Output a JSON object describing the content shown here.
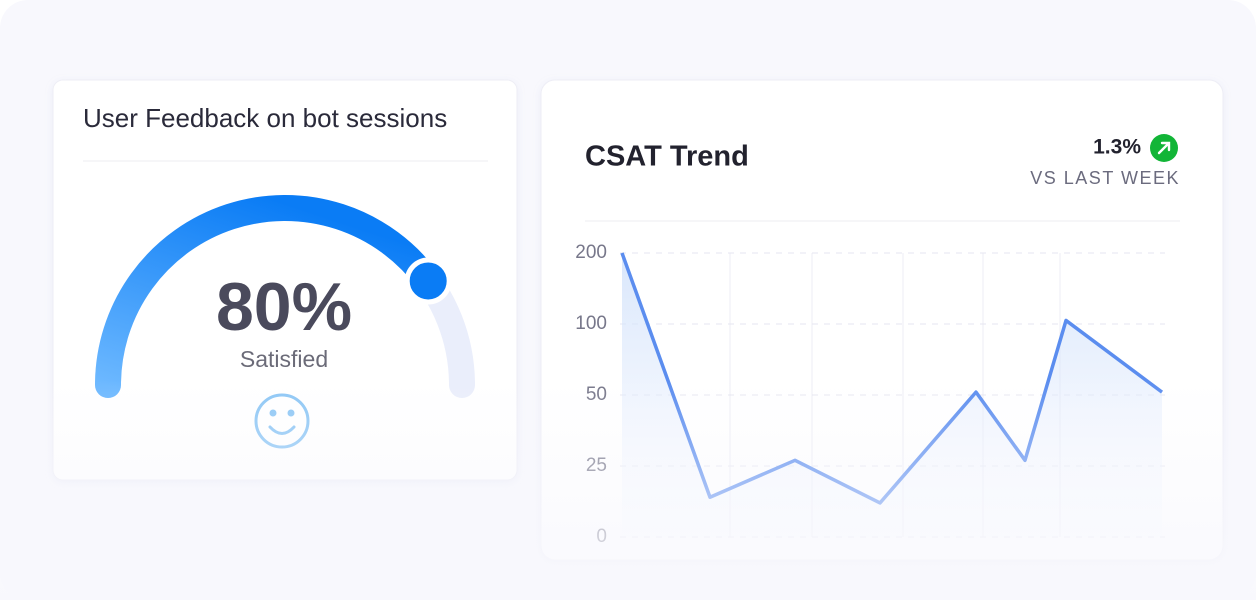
{
  "feedback_card": {
    "title": "User Feedback on bot sessions",
    "gauge": {
      "value": 80,
      "label": "80%"
    },
    "caption": "Satisfied"
  },
  "trend_card": {
    "change": "1.3%",
    "period": "VS LAST WEEK"
  },
  "chart_data": {
    "type": "line",
    "title": "CSAT Trend",
    "series": [
      {
        "name": "CSAT",
        "color": "#5b8def",
        "values": [
          200,
          14,
          27,
          12,
          52,
          27,
          105,
          52
        ]
      }
    ],
    "ylim": [
      0,
      200
    ],
    "yticks": [
      0,
      25,
      50,
      100,
      200
    ],
    "grid": true
  }
}
